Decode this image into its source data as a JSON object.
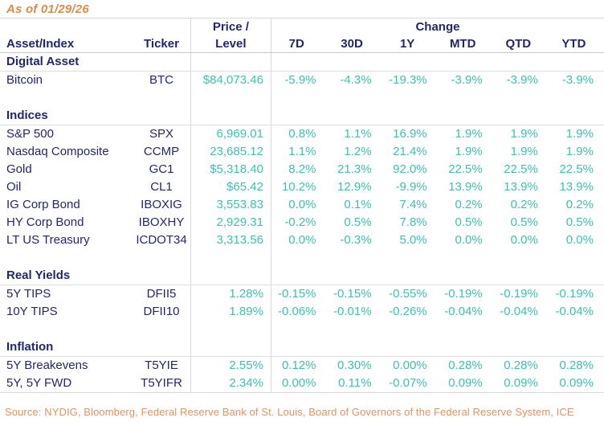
{
  "as_of": "As of 01/29/26",
  "colors": {
    "navy": "#22276b",
    "teal": "#3fc0ae",
    "orange": "#dd8b4a",
    "border_gray": "#d8d8d8"
  },
  "header": {
    "asset": "Asset/Index",
    "ticker": "Ticker",
    "price_line1": "Price /",
    "price_line2": "Level",
    "change_group": "Change",
    "periods": [
      "7D",
      "30D",
      "1Y",
      "MTD",
      "QTD",
      "YTD"
    ]
  },
  "chart_data": {
    "type": "table",
    "title": "As of 01/29/26",
    "columns": [
      "Asset/Index",
      "Ticker",
      "Price / Level",
      "7D",
      "30D",
      "1Y",
      "MTD",
      "QTD",
      "YTD"
    ],
    "column_group": {
      "label": "Change",
      "spans": [
        "7D",
        "30D",
        "1Y",
        "MTD",
        "QTD",
        "YTD"
      ]
    },
    "sections": [
      {
        "label": "Digital Asset",
        "rows": [
          {
            "asset": "Bitcoin",
            "ticker": "BTC",
            "price": "$84,073.46",
            "changes": [
              "-5.9%",
              "-4.3%",
              "-19.3%",
              "-3.9%",
              "-3.9%",
              "-3.9%"
            ]
          }
        ]
      },
      {
        "label": "Indices",
        "rows": [
          {
            "asset": "S&P 500",
            "ticker": "SPX",
            "price": "6,969.01",
            "changes": [
              "0.8%",
              "1.1%",
              "16.9%",
              "1.9%",
              "1.9%",
              "1.9%"
            ]
          },
          {
            "asset": "Nasdaq Composite",
            "ticker": "CCMP",
            "price": "23,685.12",
            "changes": [
              "1.1%",
              "1.2%",
              "21.4%",
              "1.9%",
              "1.9%",
              "1.9%"
            ]
          },
          {
            "asset": "Gold",
            "ticker": "GC1",
            "price": "$5,318.40",
            "changes": [
              "8.2%",
              "21.3%",
              "92.0%",
              "22.5%",
              "22.5%",
              "22.5%"
            ]
          },
          {
            "asset": "Oil",
            "ticker": "CL1",
            "price": "$65.42",
            "changes": [
              "10.2%",
              "12.9%",
              "-9.9%",
              "13.9%",
              "13.9%",
              "13.9%"
            ]
          },
          {
            "asset": "IG Corp Bond",
            "ticker": "IBOXIG",
            "price": "3,553.83",
            "changes": [
              "0.0%",
              "0.1%",
              "7.4%",
              "0.2%",
              "0.2%",
              "0.2%"
            ]
          },
          {
            "asset": "HY Corp Bond",
            "ticker": "IBOXHY",
            "price": "2,929.31",
            "changes": [
              "-0.2%",
              "0.5%",
              "7.8%",
              "0.5%",
              "0.5%",
              "0.5%"
            ]
          },
          {
            "asset": "LT US Treasury",
            "ticker": "ICDOT34",
            "price": "3,313.56",
            "changes": [
              "0.0%",
              "-0.3%",
              "5.0%",
              "0.0%",
              "0.0%",
              "0.0%"
            ]
          }
        ]
      },
      {
        "label": "Real Yields",
        "rows": [
          {
            "asset": "5Y TIPS",
            "ticker": "DFII5",
            "price": "1.28%",
            "changes": [
              "-0.15%",
              "-0.15%",
              "-0.55%",
              "-0.19%",
              "-0.19%",
              "-0.19%"
            ]
          },
          {
            "asset": "10Y TIPS",
            "ticker": "DFII10",
            "price": "1.89%",
            "changes": [
              "-0.06%",
              "-0.01%",
              "-0.26%",
              "-0.04%",
              "-0.04%",
              "-0.04%"
            ]
          }
        ]
      },
      {
        "label": "Inflation",
        "rows": [
          {
            "asset": "5Y Breakevens",
            "ticker": "T5YIE",
            "price": "2.55%",
            "changes": [
              "0.12%",
              "0.30%",
              "0.00%",
              "0.28%",
              "0.28%",
              "0.28%"
            ]
          },
          {
            "asset": "5Y, 5Y FWD",
            "ticker": "T5YIFR",
            "price": "2.34%",
            "changes": [
              "0.00%",
              "0.11%",
              "-0.07%",
              "0.09%",
              "0.09%",
              "0.09%"
            ]
          }
        ]
      }
    ]
  },
  "footer": {
    "source": "Source: NYDIG, Bloomberg, Federal Reserve Bank of St. Louis, Board of Governors of the Federal Reserve System, ICE"
  }
}
